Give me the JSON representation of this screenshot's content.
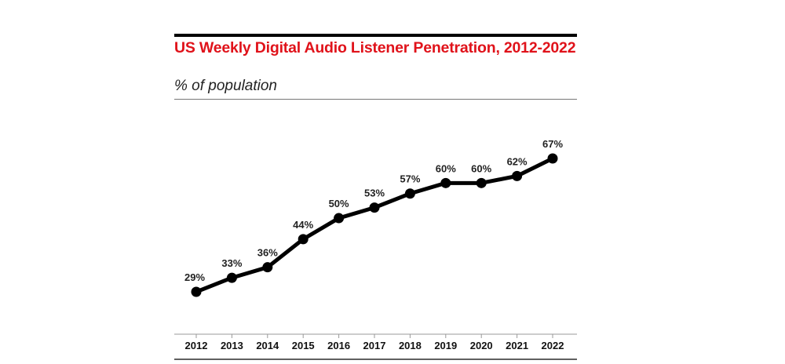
{
  "title": "US Weekly Digital Audio Listener Penetration, 2012-2022",
  "subtitle": "% of population",
  "chart_data": {
    "type": "line",
    "x": [
      "2012",
      "2013",
      "2014",
      "2015",
      "2016",
      "2017",
      "2018",
      "2019",
      "2020",
      "2021",
      "2022"
    ],
    "series": [
      {
        "values": [
          29,
          33,
          36,
          44,
          50,
          53,
          57,
          60,
          60,
          62,
          67
        ],
        "labels": [
          "29%",
          "33%",
          "36%",
          "44%",
          "50%",
          "53%",
          "57%",
          "60%",
          "60%",
          "62%",
          "67%"
        ]
      }
    ],
    "title": "US Weekly Digital Audio Listener Penetration, 2012-2022",
    "ylabel": "% of population",
    "grid": false,
    "colors": {
      "line": "#000000",
      "title": "#e0121a"
    }
  }
}
